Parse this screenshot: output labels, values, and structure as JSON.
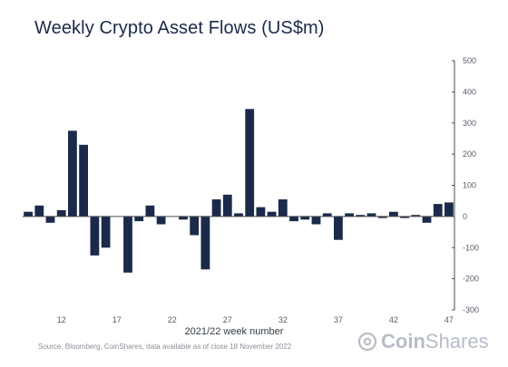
{
  "title": "Weekly Crypto Asset Flows (US$m)",
  "source": "Source: Bloomberg, CoinShares, data available as of close 18 November 2022",
  "logo": {
    "text_bold": "Coin",
    "text_light": "Shares",
    "icon": "coinshares-logo-icon"
  },
  "colors": {
    "bar": "#1b2a4a",
    "axis": "#4a4a4a",
    "text": "#555b66"
  },
  "chart_data": {
    "type": "bar",
    "xlabel": "2021/22 week number",
    "ylabel": "",
    "x_ticks": [
      12,
      17,
      22,
      27,
      32,
      37,
      42,
      47
    ],
    "ylim": [
      -300,
      500
    ],
    "y_ticks": [
      -300,
      -200,
      -100,
      0,
      100,
      200,
      300,
      400,
      500
    ],
    "y_axis_position": "right",
    "grid": false,
    "series": [
      {
        "weeks": [
          9,
          10,
          11,
          12,
          13,
          14,
          15,
          16,
          17,
          18,
          19,
          20,
          21,
          22,
          23,
          24,
          25,
          26,
          27,
          28,
          29,
          30,
          31,
          32,
          33,
          34,
          35,
          36,
          37,
          38,
          39,
          40,
          41,
          42,
          43,
          44,
          45,
          46,
          47
        ],
        "values": [
          15,
          35,
          -20,
          20,
          275,
          230,
          -125,
          -100,
          0,
          -180,
          -15,
          35,
          -25,
          0,
          -10,
          -60,
          -170,
          55,
          70,
          10,
          345,
          30,
          15,
          55,
          -15,
          -10,
          -25,
          10,
          -75,
          10,
          5,
          10,
          -5,
          15,
          -5,
          5,
          -20,
          40,
          45
        ]
      }
    ]
  }
}
